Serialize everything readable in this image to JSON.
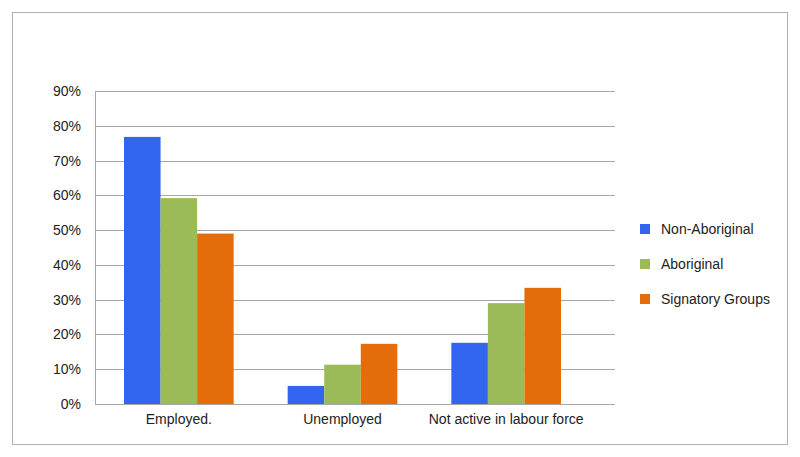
{
  "chart_data": {
    "type": "bar",
    "categories": [
      "Employed.",
      "Unemployed",
      "Not active in labour force"
    ],
    "series": [
      {
        "name": "Non-Aboriginal",
        "color": "#3366f0",
        "values": [
          76.8,
          5.2,
          17.6
        ]
      },
      {
        "name": "Aboriginal",
        "color": "#9bbb59",
        "values": [
          59.2,
          11.3,
          29.0
        ]
      },
      {
        "name": "Signatory Groups",
        "color": "#e46c0a",
        "values": [
          49.0,
          17.3,
          33.4
        ]
      }
    ],
    "ylim": [
      0,
      90
    ],
    "yticks": [
      {
        "value": 0,
        "label": "0%"
      },
      {
        "value": 10,
        "label": "10%"
      },
      {
        "value": 20,
        "label": "20%"
      },
      {
        "value": 30,
        "label": "30%"
      },
      {
        "value": 40,
        "label": "40%"
      },
      {
        "value": 50,
        "label": "50%"
      },
      {
        "value": 60,
        "label": "60%"
      },
      {
        "value": 70,
        "label": "70%"
      },
      {
        "value": 80,
        "label": "80%"
      },
      {
        "value": 90,
        "label": "90%"
      }
    ],
    "grid": true,
    "legend": "right"
  }
}
